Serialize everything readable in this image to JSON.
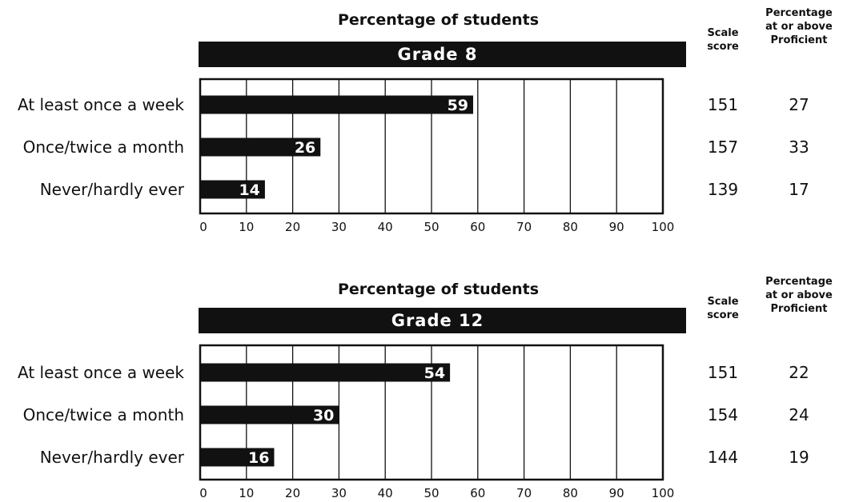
{
  "chart_data": [
    {
      "type": "bar",
      "orientation": "horizontal",
      "title": "Percentage of students",
      "panel_label": "Grade 8",
      "categories": [
        "At least once a week",
        "Once/twice a month",
        "Never/hardly ever"
      ],
      "values": [
        59,
        26,
        14
      ],
      "xlim": [
        0,
        100
      ],
      "xticks": [
        0,
        10,
        20,
        30,
        40,
        50,
        60,
        70,
        80,
        90,
        100
      ],
      "grid": true,
      "side_columns": {
        "scale_header": [
          "Scale",
          "score"
        ],
        "prof_header": [
          "Percentage",
          "at or above",
          "Proficient"
        ],
        "scale_scores": [
          151,
          157,
          139
        ],
        "percent_proficient": [
          27,
          33,
          17
        ]
      }
    },
    {
      "type": "bar",
      "orientation": "horizontal",
      "title": "Percentage of students",
      "panel_label": "Grade 12",
      "categories": [
        "At least once a week",
        "Once/twice a month",
        "Never/hardly ever"
      ],
      "values": [
        54,
        30,
        16
      ],
      "xlim": [
        0,
        100
      ],
      "xticks": [
        0,
        10,
        20,
        30,
        40,
        50,
        60,
        70,
        80,
        90,
        100
      ],
      "grid": true,
      "side_columns": {
        "scale_header": [
          "Scale",
          "score"
        ],
        "prof_header": [
          "Percentage",
          "at or above",
          "Proficient"
        ],
        "scale_scores": [
          151,
          154,
          144
        ],
        "percent_proficient": [
          22,
          24,
          19
        ]
      }
    }
  ],
  "colors": {
    "bar": "#111111",
    "grid": "#111111",
    "banner": "#111111"
  }
}
